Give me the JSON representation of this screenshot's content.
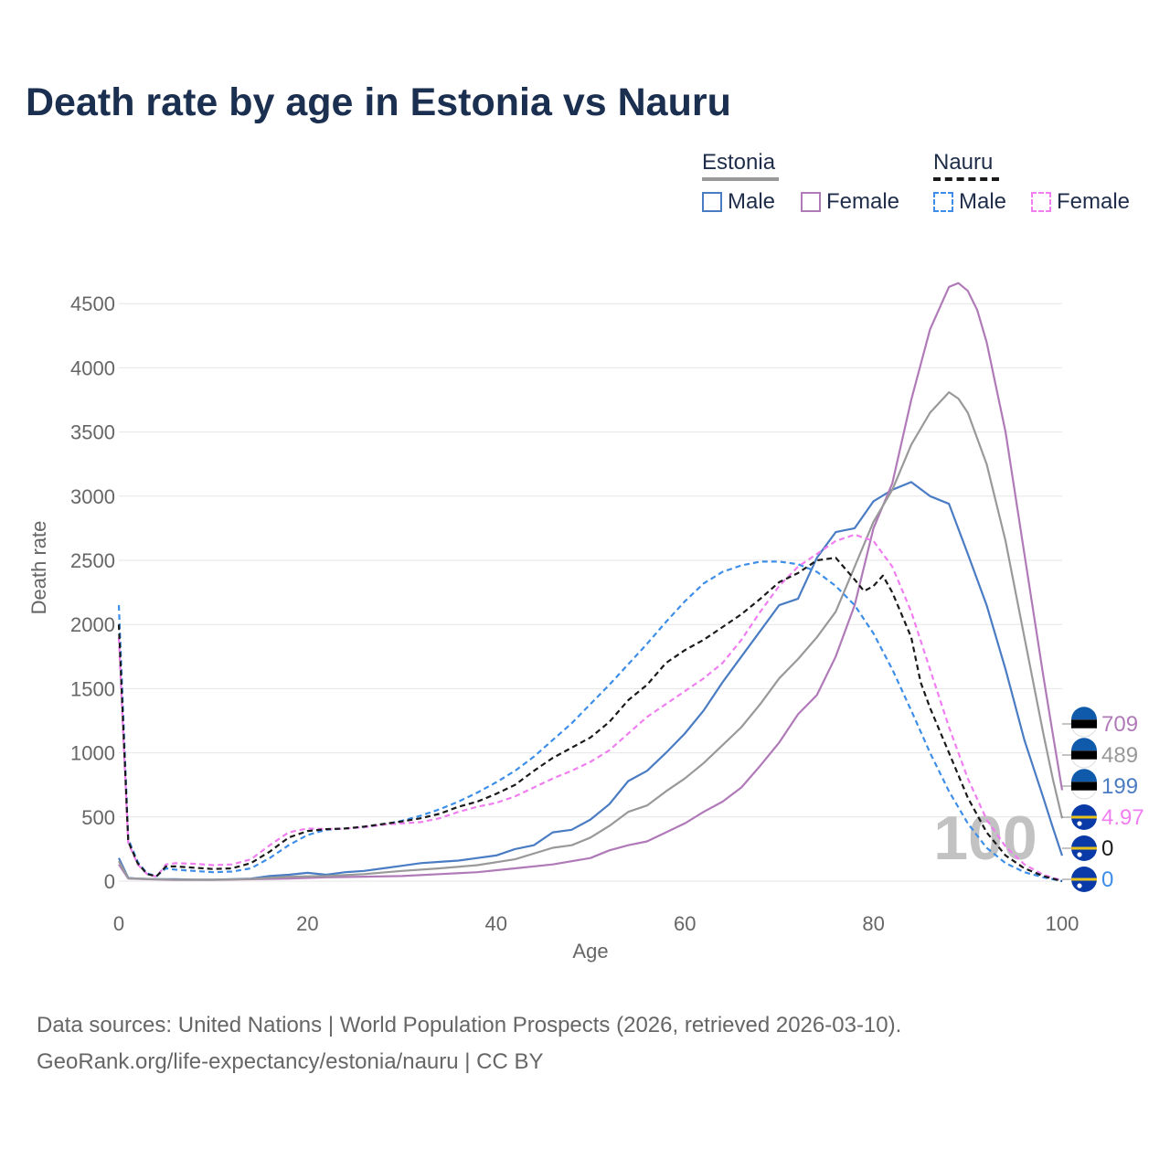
{
  "title": "Death rate by age in Estonia vs Nauru",
  "legend": {
    "estonia_label": "Estonia",
    "nauru_label": "Nauru",
    "estonia_male": "Male",
    "estonia_female": "Female",
    "nauru_male": "Male",
    "nauru_female": "Female"
  },
  "colors": {
    "estonia_male": "#4a7cc4",
    "estonia_female": "#b07ab8",
    "estonia_total": "#999999",
    "nauru_male": "#3d8ee8",
    "nauru_female": "#f07ef0",
    "nauru_total": "#1a1a1a"
  },
  "footer": {
    "line1": "Data sources: United Nations | World Population Prospects (2026, retrieved 2026-03-10).",
    "line2": "GeoRank.org/life-expectancy/estonia/nauru | CC BY"
  },
  "chart_data": {
    "type": "line",
    "title": "Death rate by age in Estonia vs Nauru",
    "xlabel": "Age",
    "ylabel": "Death rate",
    "xlim": [
      0,
      100
    ],
    "ylim": [
      0,
      4700
    ],
    "xticks": [
      0,
      20,
      40,
      60,
      80,
      100
    ],
    "yticks": [
      0,
      500,
      1000,
      1500,
      2000,
      2500,
      3000,
      3500,
      4000,
      4500
    ],
    "grid": true,
    "current_age_label": "100",
    "series": [
      {
        "name": "Estonia Male",
        "key": "estonia_male",
        "dash": false,
        "points": [
          [
            0,
            180
          ],
          [
            1,
            25
          ],
          [
            2,
            20
          ],
          [
            4,
            15
          ],
          [
            6,
            15
          ],
          [
            8,
            12
          ],
          [
            10,
            12
          ],
          [
            12,
            15
          ],
          [
            14,
            20
          ],
          [
            16,
            40
          ],
          [
            18,
            50
          ],
          [
            20,
            65
          ],
          [
            22,
            50
          ],
          [
            24,
            70
          ],
          [
            26,
            80
          ],
          [
            28,
            100
          ],
          [
            30,
            120
          ],
          [
            32,
            140
          ],
          [
            34,
            150
          ],
          [
            36,
            160
          ],
          [
            38,
            180
          ],
          [
            40,
            200
          ],
          [
            42,
            250
          ],
          [
            44,
            280
          ],
          [
            46,
            380
          ],
          [
            48,
            400
          ],
          [
            50,
            480
          ],
          [
            52,
            600
          ],
          [
            54,
            780
          ],
          [
            56,
            860
          ],
          [
            58,
            1000
          ],
          [
            60,
            1150
          ],
          [
            62,
            1330
          ],
          [
            64,
            1550
          ],
          [
            66,
            1750
          ],
          [
            68,
            1950
          ],
          [
            70,
            2150
          ],
          [
            72,
            2200
          ],
          [
            74,
            2520
          ],
          [
            76,
            2720
          ],
          [
            78,
            2750
          ],
          [
            80,
            2960
          ],
          [
            82,
            3050
          ],
          [
            84,
            3110
          ],
          [
            86,
            3000
          ],
          [
            88,
            2940
          ],
          [
            90,
            2550
          ],
          [
            92,
            2150
          ],
          [
            94,
            1650
          ],
          [
            96,
            1100
          ],
          [
            98,
            650
          ],
          [
            99,
            420
          ],
          [
            100,
            199
          ]
        ]
      },
      {
        "name": "Estonia Female",
        "key": "estonia_female",
        "dash": false,
        "points": [
          [
            0,
            130
          ],
          [
            1,
            20
          ],
          [
            3,
            15
          ],
          [
            6,
            10
          ],
          [
            10,
            10
          ],
          [
            14,
            15
          ],
          [
            18,
            20
          ],
          [
            22,
            30
          ],
          [
            26,
            35
          ],
          [
            30,
            40
          ],
          [
            34,
            55
          ],
          [
            38,
            70
          ],
          [
            42,
            100
          ],
          [
            46,
            130
          ],
          [
            50,
            180
          ],
          [
            52,
            240
          ],
          [
            54,
            280
          ],
          [
            56,
            310
          ],
          [
            58,
            380
          ],
          [
            60,
            450
          ],
          [
            62,
            540
          ],
          [
            64,
            620
          ],
          [
            66,
            730
          ],
          [
            68,
            900
          ],
          [
            70,
            1080
          ],
          [
            72,
            1300
          ],
          [
            74,
            1450
          ],
          [
            76,
            1750
          ],
          [
            78,
            2150
          ],
          [
            80,
            2750
          ],
          [
            82,
            3100
          ],
          [
            84,
            3750
          ],
          [
            86,
            4300
          ],
          [
            88,
            4630
          ],
          [
            89,
            4660
          ],
          [
            90,
            4600
          ],
          [
            91,
            4450
          ],
          [
            92,
            4200
          ],
          [
            94,
            3500
          ],
          [
            96,
            2550
          ],
          [
            98,
            1600
          ],
          [
            99,
            1150
          ],
          [
            100,
            709
          ]
        ]
      },
      {
        "name": "Estonia Total",
        "key": "estonia_total",
        "dash": false,
        "points": [
          [
            0,
            155
          ],
          [
            1,
            22
          ],
          [
            3,
            17
          ],
          [
            6,
            12
          ],
          [
            10,
            11
          ],
          [
            14,
            17
          ],
          [
            18,
            35
          ],
          [
            22,
            40
          ],
          [
            26,
            55
          ],
          [
            30,
            80
          ],
          [
            34,
            100
          ],
          [
            38,
            125
          ],
          [
            42,
            170
          ],
          [
            46,
            260
          ],
          [
            48,
            280
          ],
          [
            50,
            340
          ],
          [
            52,
            430
          ],
          [
            54,
            540
          ],
          [
            56,
            590
          ],
          [
            58,
            700
          ],
          [
            60,
            800
          ],
          [
            62,
            920
          ],
          [
            64,
            1060
          ],
          [
            66,
            1200
          ],
          [
            68,
            1380
          ],
          [
            70,
            1580
          ],
          [
            72,
            1730
          ],
          [
            74,
            1900
          ],
          [
            76,
            2100
          ],
          [
            78,
            2450
          ],
          [
            80,
            2800
          ],
          [
            82,
            3050
          ],
          [
            84,
            3400
          ],
          [
            86,
            3650
          ],
          [
            88,
            3810
          ],
          [
            89,
            3760
          ],
          [
            90,
            3650
          ],
          [
            92,
            3250
          ],
          [
            94,
            2650
          ],
          [
            96,
            1900
          ],
          [
            98,
            1150
          ],
          [
            99,
            800
          ],
          [
            100,
            489
          ]
        ]
      },
      {
        "name": "Nauru Male",
        "key": "nauru_male",
        "dash": true,
        "points": [
          [
            0,
            2150
          ],
          [
            1,
            330
          ],
          [
            2,
            150
          ],
          [
            3,
            60
          ],
          [
            4,
            40
          ],
          [
            5,
            100
          ],
          [
            6,
            90
          ],
          [
            8,
            80
          ],
          [
            10,
            70
          ],
          [
            12,
            75
          ],
          [
            14,
            100
          ],
          [
            16,
            180
          ],
          [
            18,
            280
          ],
          [
            20,
            360
          ],
          [
            22,
            400
          ],
          [
            24,
            410
          ],
          [
            26,
            420
          ],
          [
            28,
            440
          ],
          [
            30,
            470
          ],
          [
            32,
            510
          ],
          [
            34,
            560
          ],
          [
            36,
            620
          ],
          [
            38,
            690
          ],
          [
            40,
            770
          ],
          [
            42,
            860
          ],
          [
            44,
            970
          ],
          [
            46,
            1100
          ],
          [
            48,
            1230
          ],
          [
            50,
            1380
          ],
          [
            52,
            1530
          ],
          [
            54,
            1690
          ],
          [
            56,
            1850
          ],
          [
            58,
            2020
          ],
          [
            60,
            2180
          ],
          [
            62,
            2320
          ],
          [
            64,
            2410
          ],
          [
            66,
            2460
          ],
          [
            68,
            2490
          ],
          [
            70,
            2490
          ],
          [
            72,
            2470
          ],
          [
            74,
            2410
          ],
          [
            76,
            2300
          ],
          [
            78,
            2150
          ],
          [
            80,
            1930
          ],
          [
            82,
            1650
          ],
          [
            84,
            1330
          ],
          [
            86,
            1000
          ],
          [
            88,
            700
          ],
          [
            90,
            450
          ],
          [
            92,
            260
          ],
          [
            94,
            140
          ],
          [
            96,
            70
          ],
          [
            98,
            30
          ],
          [
            100,
            0
          ]
        ]
      },
      {
        "name": "Nauru Female",
        "key": "nauru_female",
        "dash": true,
        "points": [
          [
            0,
            1900
          ],
          [
            1,
            300
          ],
          [
            2,
            130
          ],
          [
            3,
            55
          ],
          [
            4,
            35
          ],
          [
            5,
            130
          ],
          [
            6,
            140
          ],
          [
            8,
            135
          ],
          [
            10,
            125
          ],
          [
            12,
            130
          ],
          [
            14,
            170
          ],
          [
            16,
            280
          ],
          [
            18,
            380
          ],
          [
            20,
            410
          ],
          [
            22,
            405
          ],
          [
            24,
            410
          ],
          [
            26,
            420
          ],
          [
            28,
            440
          ],
          [
            30,
            450
          ],
          [
            32,
            460
          ],
          [
            34,
            490
          ],
          [
            36,
            540
          ],
          [
            38,
            580
          ],
          [
            40,
            610
          ],
          [
            42,
            660
          ],
          [
            44,
            730
          ],
          [
            46,
            800
          ],
          [
            48,
            860
          ],
          [
            50,
            930
          ],
          [
            52,
            1020
          ],
          [
            54,
            1150
          ],
          [
            56,
            1280
          ],
          [
            58,
            1380
          ],
          [
            60,
            1480
          ],
          [
            62,
            1580
          ],
          [
            64,
            1700
          ],
          [
            66,
            1880
          ],
          [
            68,
            2100
          ],
          [
            70,
            2300
          ],
          [
            72,
            2450
          ],
          [
            74,
            2550
          ],
          [
            76,
            2650
          ],
          [
            78,
            2700
          ],
          [
            80,
            2650
          ],
          [
            82,
            2450
          ],
          [
            84,
            2100
          ],
          [
            86,
            1650
          ],
          [
            88,
            1200
          ],
          [
            90,
            800
          ],
          [
            92,
            480
          ],
          [
            94,
            270
          ],
          [
            96,
            130
          ],
          [
            98,
            50
          ],
          [
            100,
            4.97
          ]
        ]
      },
      {
        "name": "Nauru Total",
        "key": "nauru_total",
        "dash": true,
        "points": [
          [
            0,
            2000
          ],
          [
            1,
            310
          ],
          [
            2,
            140
          ],
          [
            3,
            55
          ],
          [
            4,
            38
          ],
          [
            5,
            115
          ],
          [
            6,
            115
          ],
          [
            8,
            105
          ],
          [
            10,
            95
          ],
          [
            12,
            100
          ],
          [
            14,
            140
          ],
          [
            16,
            230
          ],
          [
            18,
            340
          ],
          [
            20,
            390
          ],
          [
            22,
            405
          ],
          [
            24,
            410
          ],
          [
            26,
            425
          ],
          [
            28,
            445
          ],
          [
            30,
            465
          ],
          [
            32,
            490
          ],
          [
            34,
            525
          ],
          [
            36,
            580
          ],
          [
            38,
            620
          ],
          [
            40,
            680
          ],
          [
            42,
            750
          ],
          [
            44,
            860
          ],
          [
            46,
            960
          ],
          [
            48,
            1040
          ],
          [
            50,
            1120
          ],
          [
            52,
            1240
          ],
          [
            54,
            1410
          ],
          [
            56,
            1530
          ],
          [
            58,
            1700
          ],
          [
            60,
            1800
          ],
          [
            62,
            1880
          ],
          [
            64,
            1980
          ],
          [
            66,
            2080
          ],
          [
            68,
            2200
          ],
          [
            70,
            2330
          ],
          [
            72,
            2400
          ],
          [
            74,
            2500
          ],
          [
            76,
            2520
          ],
          [
            78,
            2350
          ],
          [
            79,
            2260
          ],
          [
            80,
            2300
          ],
          [
            81,
            2380
          ],
          [
            82,
            2250
          ],
          [
            84,
            1900
          ],
          [
            85,
            1550
          ],
          [
            86,
            1350
          ],
          [
            88,
            1000
          ],
          [
            90,
            650
          ],
          [
            92,
            380
          ],
          [
            94,
            200
          ],
          [
            96,
            100
          ],
          [
            98,
            40
          ],
          [
            100,
            0
          ]
        ]
      }
    ],
    "end_labels": [
      {
        "value": "709",
        "key": "estonia_female",
        "country": "Estonia"
      },
      {
        "value": "489",
        "key": "estonia_total",
        "country": "Estonia"
      },
      {
        "value": "199",
        "key": "estonia_male",
        "country": "Estonia"
      },
      {
        "value": "4.97",
        "key": "nauru_female",
        "country": "Nauru"
      },
      {
        "value": "0",
        "key": "nauru_total",
        "country": "Nauru"
      },
      {
        "value": "0",
        "key": "nauru_male",
        "country": "Nauru"
      }
    ]
  }
}
